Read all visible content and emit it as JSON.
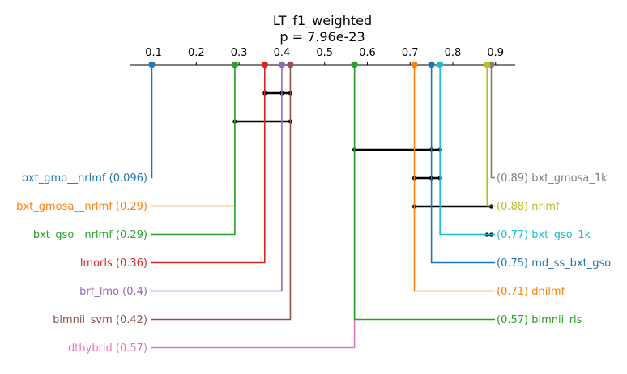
{
  "chart_data": {
    "type": "critical-difference",
    "title": "LT_f1_weighted",
    "subtitle": "p = 7.96e-23",
    "axis": {
      "min": 0.05,
      "max": 0.95,
      "ticks": [
        0.1,
        0.2,
        0.3,
        0.4,
        0.5,
        0.6,
        0.7,
        0.8,
        0.9
      ],
      "tick_labels": [
        "0.1",
        "0.2",
        "0.3",
        "0.4",
        "0.5",
        "0.6",
        "0.7",
        "0.8",
        "0.9"
      ]
    },
    "methods": [
      {
        "name": "bxt_gmo__nrlmf",
        "value": 0.096,
        "label": "bxt_gmo__nrlmf (0.096)",
        "side": "left",
        "color": "#1f77b4"
      },
      {
        "name": "bxt_gmosa__nrlmf",
        "value": 0.29,
        "label": "bxt_gmosa__nrlmf (0.29)",
        "side": "left",
        "color": "#ff7f0e"
      },
      {
        "name": "bxt_gso__nrlmf",
        "value": 0.29,
        "label": "bxt_gso__nrlmf (0.29)",
        "side": "left",
        "color": "#2ca02c"
      },
      {
        "name": "lmorls",
        "value": 0.36,
        "label": "lmorls (0.36)",
        "side": "left",
        "color": "#d62728"
      },
      {
        "name": "brf_lmo",
        "value": 0.4,
        "label": "brf_lmo (0.4)",
        "side": "left",
        "color": "#9467bd"
      },
      {
        "name": "blmnii_svm",
        "value": 0.42,
        "label": "blmnii_svm (0.42)",
        "side": "left",
        "color": "#8c564b"
      },
      {
        "name": "dthybrid",
        "value": 0.57,
        "label": "dthybrid (0.57)",
        "side": "left",
        "color": "#e377c2"
      },
      {
        "name": "bxt_gmosa_1k",
        "value": 0.89,
        "label": "(0.89) bxt_gmosa_1k",
        "side": "right",
        "color": "#7f7f7f"
      },
      {
        "name": "nrlmf",
        "value": 0.88,
        "label": "(0.88) nrlmf",
        "side": "right",
        "color": "#bcbd22"
      },
      {
        "name": "bxt_gso_1k",
        "value": 0.77,
        "label": "(0.77) bxt_gso_1k",
        "side": "right",
        "color": "#17becf"
      },
      {
        "name": "md_ss_bxt_gso",
        "value": 0.75,
        "label": "(0.75) md_ss_bxt_gso",
        "side": "right",
        "color": "#1f77b4"
      },
      {
        "name": "dnilmf",
        "value": 0.71,
        "label": "(0.71) dnilmf",
        "side": "right",
        "color": "#ff7f0e"
      },
      {
        "name": "blmnii_rls",
        "value": 0.57,
        "label": "(0.57) blmnii_rls",
        "side": "right",
        "color": "#2ca02c"
      }
    ],
    "cliques": [
      {
        "from": 0.36,
        "to": 0.42,
        "points": [
          0.36,
          0.4,
          0.42
        ]
      },
      {
        "from": 0.29,
        "to": 0.42,
        "points": [
          0.29,
          0.42
        ]
      },
      {
        "from": 0.57,
        "to": 0.77,
        "points": [
          0.57,
          0.75,
          0.77
        ]
      },
      {
        "from": 0.71,
        "to": 0.77,
        "points": [
          0.71,
          0.75,
          0.77
        ]
      },
      {
        "from": 0.71,
        "to": 0.89,
        "points": [
          0.71,
          0.89
        ]
      },
      {
        "from": 0.88,
        "to": 0.89,
        "points": [
          0.88,
          0.89
        ]
      }
    ]
  }
}
